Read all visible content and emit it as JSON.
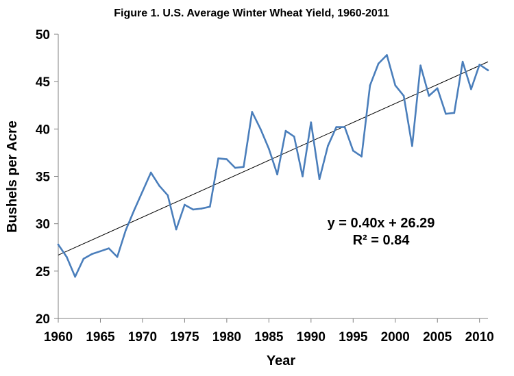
{
  "chart_data": {
    "type": "line",
    "title": "Figure 1. U.S. Average Winter Wheat Yield, 1960-2011",
    "xlabel": "Year",
    "ylabel": "Bushels per Acre",
    "xlim": [
      1960,
      2011
    ],
    "ylim": [
      20,
      50
    ],
    "x_ticks": [
      "1960",
      "1965",
      "1970",
      "1975",
      "1980",
      "1985",
      "1990",
      "1995",
      "2000",
      "2005",
      "2010"
    ],
    "y_ticks": [
      "20",
      "25",
      "30",
      "35",
      "40",
      "45",
      "50"
    ],
    "grid": false,
    "legend": "none",
    "series": [
      {
        "color": "#4a7ebb",
        "x": [
          1960,
          1961,
          1962,
          1963,
          1964,
          1965,
          1966,
          1967,
          1968,
          1969,
          1970,
          1971,
          1972,
          1973,
          1974,
          1975,
          1976,
          1977,
          1978,
          1979,
          1980,
          1981,
          1982,
          1983,
          1984,
          1985,
          1986,
          1987,
          1988,
          1989,
          1990,
          1991,
          1992,
          1993,
          1994,
          1995,
          1996,
          1997,
          1998,
          1999,
          2000,
          2001,
          2002,
          2003,
          2004,
          2005,
          2006,
          2007,
          2008,
          2009,
          2010,
          2011
        ],
        "values": [
          27.8,
          26.5,
          24.4,
          26.3,
          26.8,
          27.1,
          27.4,
          26.5,
          29.3,
          31.4,
          33.4,
          35.4,
          34.0,
          33.0,
          29.4,
          32.0,
          31.5,
          31.6,
          31.8,
          36.9,
          36.8,
          35.9,
          36.0,
          41.8,
          40.0,
          37.9,
          35.2,
          39.8,
          39.2,
          35.0,
          40.7,
          34.7,
          38.2,
          40.2,
          40.2,
          37.7,
          37.1,
          44.6,
          46.9,
          47.8,
          44.6,
          43.5,
          38.2,
          46.7,
          43.5,
          44.3,
          41.6,
          41.7,
          47.1,
          44.2,
          46.8,
          46.2
        ]
      }
    ],
    "trendline": {
      "type": "linear",
      "color": "#000000",
      "slope": 0.4,
      "intercept": 26.29,
      "equation": "y = 0.40x + 26.29",
      "r_squared": "R² = 0.84"
    }
  }
}
